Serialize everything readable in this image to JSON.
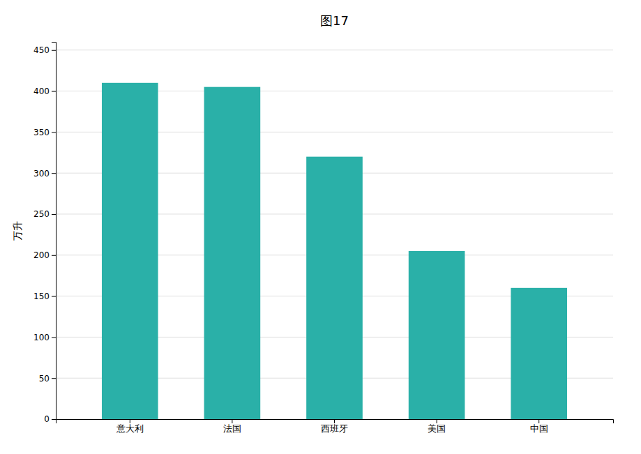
{
  "chart_data": {
    "type": "bar",
    "title": "图17",
    "categories": [
      "意大利",
      "法国",
      "西班牙",
      "美国",
      "中国"
    ],
    "values": [
      410,
      405,
      320,
      205,
      160
    ],
    "color": "#2ab0a8",
    "ylabel": "万升",
    "ylim": [
      0,
      460
    ],
    "yticks": [
      0,
      50,
      100,
      150,
      200,
      250,
      300,
      350,
      400,
      450
    ],
    "grid": true
  }
}
